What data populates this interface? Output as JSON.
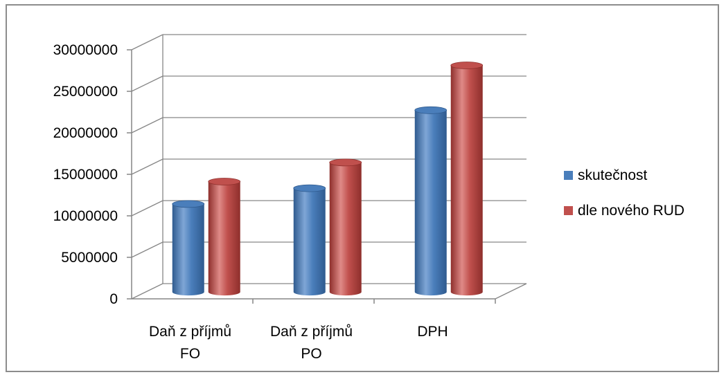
{
  "chart_data": {
    "type": "bar",
    "title": "",
    "xlabel": "",
    "ylabel": "",
    "categories": [
      [
        "Daň z příjmů",
        "FO"
      ],
      [
        "Daň z příjmů",
        "PO"
      ],
      [
        "DPH"
      ]
    ],
    "series": [
      {
        "name": "skutečnost",
        "values": [
          10600000,
          12500000,
          21900000
        ],
        "color": "#4a7ebb",
        "dark": "#2f5b8f",
        "light": "#7fa6d6"
      },
      {
        "name": "dle nového RUD",
        "values": [
          13300000,
          15600000,
          27300000
        ],
        "color": "#c0504d",
        "dark": "#8e2f2c",
        "light": "#df8a87"
      }
    ],
    "ylim": [
      0,
      30000000
    ],
    "yticks": [
      "0",
      "5000000",
      "10000000",
      "15000000",
      "20000000",
      "25000000",
      "30000000"
    ],
    "grid": true,
    "legend_position": "right"
  }
}
